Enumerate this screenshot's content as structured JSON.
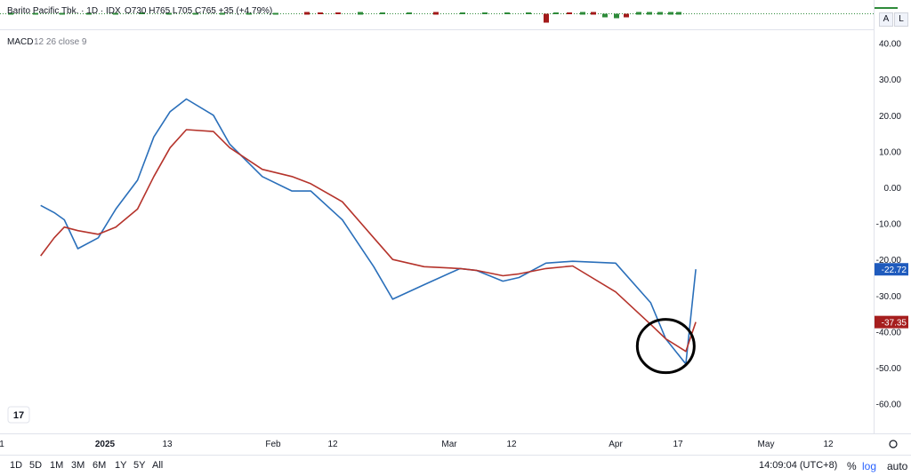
{
  "header": {
    "symbol_line": "Barito Pacific Tbk. · 1D · IDX",
    "ohlc": "O730  H765  L705  C765  +35 (+4.79%)"
  },
  "indicator": {
    "label": "MACD",
    "params": "12 26 close 9"
  },
  "price_scale_buttons": {
    "a": "A",
    "l": "L"
  },
  "y_axis_ticks": [
    "40.00",
    "30.00",
    "20.00",
    "10.00",
    "0.00",
    "-10.00",
    "-20.00",
    "-30.00",
    "-40.00",
    "-50.00",
    "-60.00"
  ],
  "x_axis_labels": [
    "1",
    "2025",
    "13",
    "Feb",
    "12",
    "Mar",
    "12",
    "Apr",
    "17",
    "May",
    "12"
  ],
  "last_values": {
    "macd": "-22.72",
    "signal": "-37.35"
  },
  "colors": {
    "macd": "#2a6fba",
    "signal": "#b5332b",
    "macd_badge": "#1f5bbd",
    "signal_badge": "#a61e1e",
    "candle_up": "#2e8b3a",
    "candle_down": "#a31a1a"
  },
  "chart_data": {
    "type": "line",
    "title": "MACD 12 26 close 9",
    "ylim": [
      -60,
      40
    ],
    "x": [
      "2024-12-13",
      "2024-12-17",
      "2024-12-20",
      "2024-12-24",
      "2024-12-30",
      "2025-01-03",
      "2025-01-07",
      "2025-01-10",
      "2025-01-13",
      "2025-01-16",
      "2025-01-21",
      "2025-01-24",
      "2025-01-30",
      "2025-02-04",
      "2025-02-07",
      "2025-02-12",
      "2025-02-17",
      "2025-02-20",
      "2025-02-25",
      "2025-03-03",
      "2025-03-06",
      "2025-03-11",
      "2025-03-14",
      "2025-03-19",
      "2025-03-24",
      "2025-04-01",
      "2025-04-08",
      "2025-04-11",
      "2025-04-15",
      "2025-04-17"
    ],
    "series": [
      {
        "name": "MACD",
        "values": [
          -5,
          -7,
          -9,
          -17,
          -14,
          -6,
          2,
          14,
          21,
          24.5,
          20,
          12,
          3,
          -1,
          -1,
          -9,
          -22,
          -31,
          -27,
          -22.5,
          -23,
          -26,
          -25,
          -21,
          -20.5,
          -21,
          -32,
          -42,
          -49,
          -22.72
        ]
      },
      {
        "name": "Signal",
        "values": [
          -19,
          -14,
          -11,
          -12,
          -13,
          -11,
          -6,
          3,
          11,
          16,
          15.5,
          11,
          5,
          3,
          1,
          -4,
          -14,
          -20,
          -22,
          -22.5,
          -23,
          -24.5,
          -24,
          -22.5,
          -21.8,
          -29,
          -38,
          -42,
          -45.5,
          -37.35
        ]
      }
    ],
    "annotation": "circle around crossover in early April"
  }
}
